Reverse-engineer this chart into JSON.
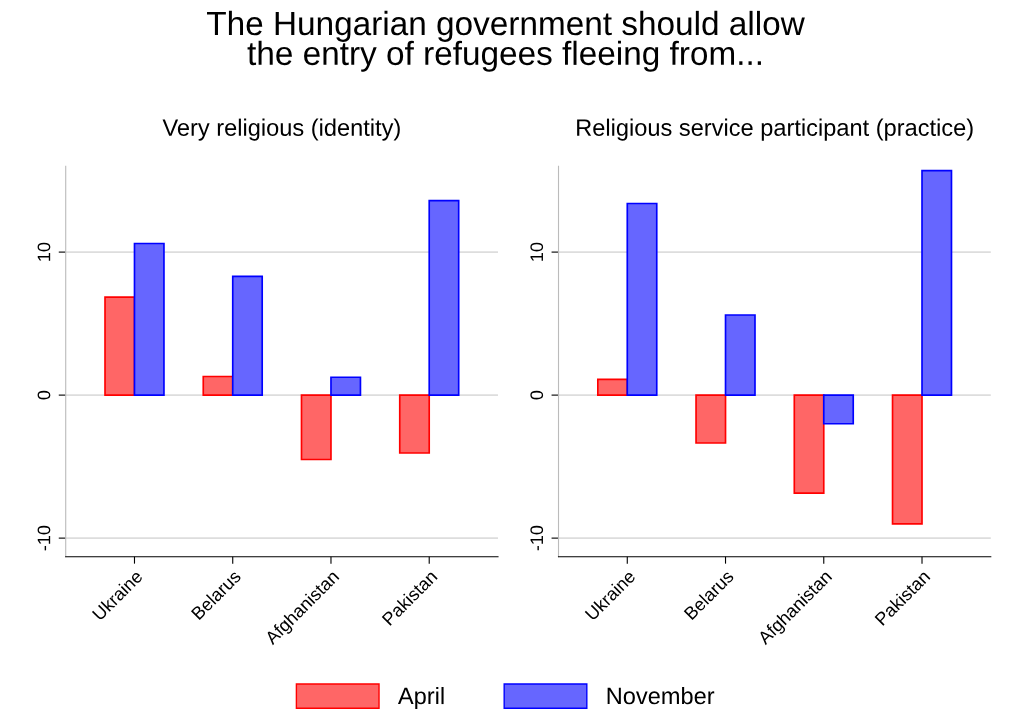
{
  "chart_data": [
    {
      "type": "bar",
      "title": "The Hungarian government should allow\nthe entry of refugees fleeing from...",
      "subtitle": "Very religious (identity)",
      "categories": [
        "Ukraine",
        "Belarus",
        "Afghanistan",
        "Pakistan"
      ],
      "series": [
        {
          "name": "April",
          "color": "#ff6666",
          "values": [
            6.85,
            1.3,
            -4.5,
            -4.05
          ]
        },
        {
          "name": "November",
          "color": "#6666ff",
          "values": [
            10.6,
            8.3,
            1.25,
            13.6
          ]
        }
      ],
      "ylim": [
        -11.3,
        16
      ],
      "yticks": [
        -10,
        0,
        10
      ],
      "grid": "y",
      "legend": "bottom"
    },
    {
      "type": "bar",
      "subtitle": "Religious service participant (practice)",
      "categories": [
        "Ukraine",
        "Belarus",
        "Afghanistan",
        "Pakistan"
      ],
      "series": [
        {
          "name": "April",
          "color": "#ff6666",
          "values": [
            1.1,
            -3.35,
            -6.85,
            -9.0
          ]
        },
        {
          "name": "November",
          "color": "#6666ff",
          "values": [
            13.4,
            5.6,
            -2.0,
            15.7
          ]
        }
      ],
      "ylim": [
        -11.3,
        16
      ],
      "yticks": [
        -10,
        0,
        10
      ],
      "grid": "y"
    }
  ]
}
